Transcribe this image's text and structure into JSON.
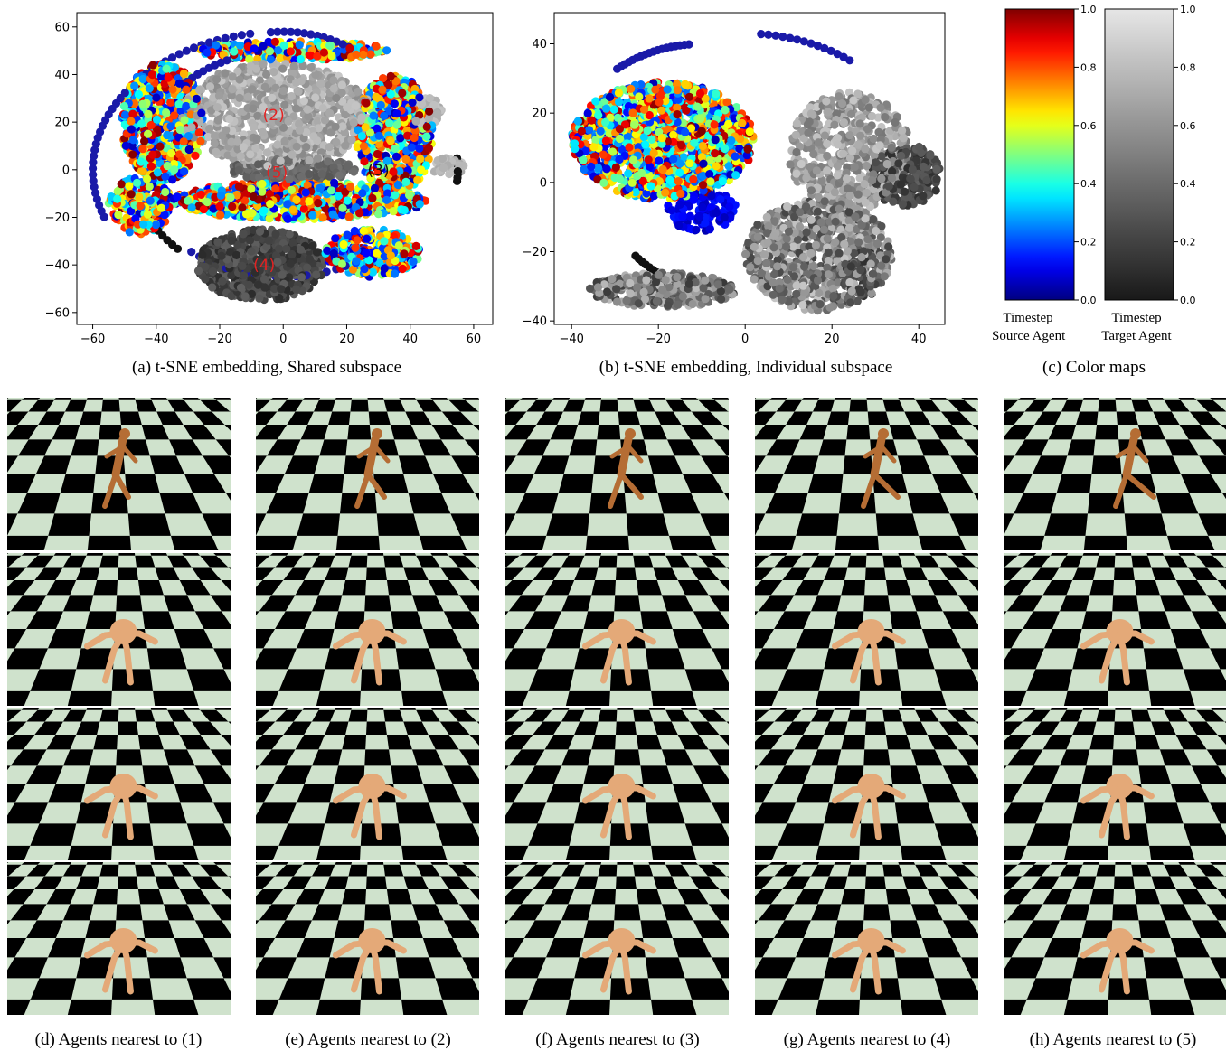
{
  "chart_data": [
    {
      "id": "a",
      "type": "scatter",
      "caption": "(a) t-SNE embedding, Shared subspace",
      "xlim": [
        -65,
        66
      ],
      "ylim": [
        -65,
        66
      ],
      "xticks": [
        -60,
        -40,
        -20,
        0,
        20,
        40,
        60
      ],
      "yticks": [
        -60,
        -40,
        -20,
        0,
        20,
        40,
        60
      ],
      "grid": false,
      "clusters": [
        {
          "color_map": "gray",
          "cx": -2,
          "cy": 23,
          "rx": 30,
          "ry": 22,
          "t": [
            0.55,
            0.85
          ],
          "n": 900
        },
        {
          "color_map": "gray",
          "cx": -7,
          "cy": -40,
          "rx": 20,
          "ry": 15,
          "t": [
            0.08,
            0.35
          ],
          "n": 650
        },
        {
          "color_map": "gray",
          "cx": 3,
          "cy": 0,
          "rx": 20,
          "ry": 5,
          "t": [
            0.3,
            0.45
          ],
          "n": 200
        },
        {
          "color_map": "gray",
          "cx": 45,
          "cy": 25,
          "rx": 5,
          "ry": 6,
          "t": [
            0.7,
            0.85
          ],
          "n": 60
        },
        {
          "color_map": "gray",
          "cx": 52,
          "cy": 1,
          "rx": 5,
          "ry": 4,
          "t": [
            0.7,
            0.85
          ],
          "n": 40
        },
        {
          "color_map": "jet",
          "cx": -38,
          "cy": 20,
          "rx": 13,
          "ry": 25,
          "t": [
            0.05,
            1.0
          ],
          "n": 650
        },
        {
          "color_map": "jet",
          "cx": 35,
          "cy": 15,
          "rx": 12,
          "ry": 25,
          "t": [
            0.05,
            1.0
          ],
          "n": 550
        },
        {
          "color_map": "jet",
          "cx": 5,
          "cy": -13,
          "rx": 40,
          "ry": 8,
          "t": [
            0.05,
            1.0
          ],
          "n": 700
        },
        {
          "color_map": "jet",
          "cx": 28,
          "cy": -35,
          "rx": 15,
          "ry": 10,
          "t": [
            0.05,
            1.0
          ],
          "n": 300
        },
        {
          "color_map": "jet",
          "cx": 3,
          "cy": 50,
          "rx": 30,
          "ry": 4,
          "t": [
            0.05,
            1.0
          ],
          "n": 220
        },
        {
          "color_map": "jet",
          "cx": -45,
          "cy": -15,
          "rx": 10,
          "ry": 12,
          "t": [
            0.05,
            1.0
          ],
          "n": 200
        }
      ],
      "arcs": [
        {
          "color": "#1a1aa8",
          "cx": 0,
          "cy": 0,
          "rx": 60,
          "ry": 58,
          "from_deg": 100,
          "to_deg": 200,
          "n": 40
        },
        {
          "color": "#1a1aa8",
          "cx": 0,
          "cy": 0,
          "rx": 45,
          "ry": 50,
          "from_deg": 105,
          "to_deg": 135,
          "n": 12
        },
        {
          "color": "#1a1aa8",
          "cx": 0,
          "cy": 0,
          "rx": 45,
          "ry": 58,
          "from_deg": 60,
          "to_deg": 95,
          "n": 14
        },
        {
          "color": "#1a1aa8",
          "cx": 0,
          "cy": 0,
          "rx": 45,
          "ry": 45,
          "from_deg": 230,
          "to_deg": 300,
          "n": 18
        },
        {
          "color": "#111111",
          "cx": 0,
          "cy": 0,
          "rx": 55,
          "ry": 55,
          "from_deg": -5,
          "to_deg": 5,
          "n": 8
        },
        {
          "color": "#111111",
          "cx": 0,
          "cy": 0,
          "rx": 47,
          "ry": 47,
          "from_deg": 210,
          "to_deg": 225,
          "n": 6
        }
      ],
      "annotations": [
        {
          "text": "(2)",
          "x": -3,
          "y": 23,
          "color": "#e32222"
        },
        {
          "text": "(5)",
          "x": -2,
          "y": -1,
          "color": "#e32222"
        },
        {
          "text": "(3)",
          "x": 30,
          "y": 0,
          "color": "#111111"
        },
        {
          "text": "(4)",
          "x": -6,
          "y": -40,
          "color": "#e32222"
        }
      ]
    },
    {
      "id": "b",
      "type": "scatter",
      "caption": "(b) t-SNE embedding, Individual subspace",
      "xlim": [
        -44,
        46
      ],
      "ylim": [
        -41,
        49
      ],
      "xticks": [
        -40,
        -20,
        0,
        20,
        40
      ],
      "yticks": [
        -40,
        -20,
        0,
        20,
        40
      ],
      "grid": false,
      "clusters": [
        {
          "color_map": "jet",
          "cx": -19,
          "cy": 12,
          "rx": 21,
          "ry": 17,
          "t": [
            0.05,
            1.0
          ],
          "n": 1500
        },
        {
          "color_map": "jet",
          "cx": -10,
          "cy": -8,
          "rx": 8,
          "ry": 6,
          "t": [
            0.05,
            0.15
          ],
          "n": 120
        },
        {
          "color_map": "gray",
          "cx": 24,
          "cy": 9,
          "rx": 14,
          "ry": 17,
          "t": [
            0.45,
            0.85
          ],
          "n": 500
        },
        {
          "color_map": "gray",
          "cx": 37,
          "cy": 2,
          "rx": 8,
          "ry": 9,
          "t": [
            0.1,
            0.35
          ],
          "n": 200
        },
        {
          "color_map": "gray",
          "cx": 17,
          "cy": -21,
          "rx": 17,
          "ry": 16,
          "t": [
            0.2,
            0.85
          ],
          "n": 750
        },
        {
          "color_map": "gray",
          "cx": -19,
          "cy": -31,
          "rx": 17,
          "ry": 5,
          "t": [
            0.15,
            0.8
          ],
          "n": 320
        },
        {
          "color_map": "gray",
          "cx": 27,
          "cy": -26,
          "rx": 5,
          "ry": 7,
          "t": [
            0.05,
            0.3
          ],
          "n": 80
        }
      ],
      "arcs": [
        {
          "color": "#1a1aa8",
          "cx": -10,
          "cy": 0,
          "rx": 34,
          "ry": 40,
          "from_deg": 95,
          "to_deg": 125,
          "n": 18
        },
        {
          "color": "#1a1aa8",
          "cx": 0,
          "cy": 0,
          "rx": 42,
          "ry": 43,
          "from_deg": 55,
          "to_deg": 85,
          "n": 14
        },
        {
          "color": "#111111",
          "cx": 0,
          "cy": 0,
          "rx": 33,
          "ry": 33,
          "from_deg": 220,
          "to_deg": 232,
          "n": 7
        }
      ],
      "annotations": []
    }
  ],
  "colorbars": [
    {
      "id": "source",
      "map": "jet",
      "ticks": [
        "1.0",
        "0.8",
        "0.6",
        "0.4",
        "0.2",
        "0.0"
      ],
      "label_line1": "Timestep",
      "label_line2": "Source Agent"
    },
    {
      "id": "target",
      "map": "gray",
      "ticks": [
        "1.0",
        "0.8",
        "0.6",
        "0.4",
        "0.2",
        "0.0"
      ],
      "label_line1": "Timestep",
      "label_line2": "Target Agent"
    }
  ],
  "captions": {
    "a": "(a) t-SNE embedding, Shared subspace",
    "b": "(b) t-SNE embedding, Individual subspace",
    "c": "(c) Color maps",
    "d": "(d) Agents nearest to (1)",
    "e": "(e) Agents nearest to (2)",
    "f": "(f) Agents nearest to (3)",
    "g": "(g) Agents nearest to (4)",
    "h": "(h) Agents nearest to (5)"
  },
  "render_columns": [
    {
      "caption_key": "d",
      "agents": [
        "humanoid",
        "ant",
        "ant",
        "ant"
      ]
    },
    {
      "caption_key": "e",
      "agents": [
        "humanoid",
        "ant",
        "ant",
        "ant"
      ]
    },
    {
      "caption_key": "f",
      "agents": [
        "humanoid",
        "ant",
        "ant",
        "ant"
      ]
    },
    {
      "caption_key": "g",
      "agents": [
        "humanoid",
        "ant",
        "ant",
        "ant"
      ]
    },
    {
      "caption_key": "h",
      "agents": [
        "humanoid",
        "ant",
        "ant",
        "ant"
      ]
    }
  ],
  "palette": {
    "checker_light": "#cfe2cc",
    "checker_dark": "#000000",
    "agent_body": "#e4a978",
    "humanoid_body": "#b56d34"
  }
}
